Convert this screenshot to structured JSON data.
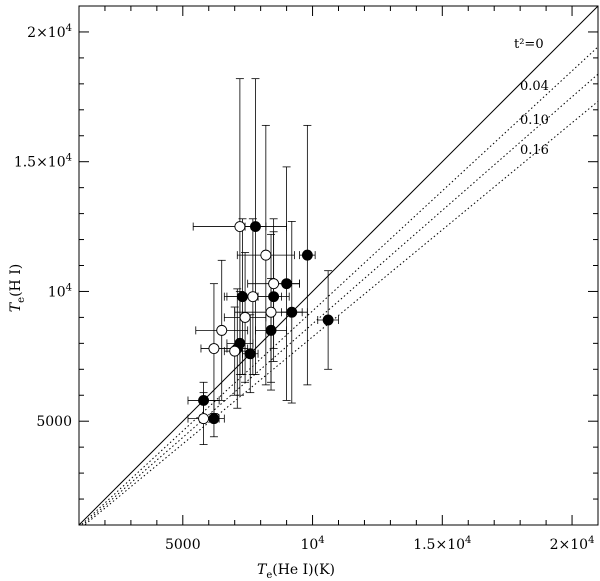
{
  "chart_data": {
    "type": "scatter",
    "title": "",
    "xlabel": {
      "main": "T",
      "sub": "e",
      "rest": "(He I)(K)"
    },
    "ylabel": {
      "main": "T",
      "sub": "e",
      "rest": "(H I)"
    },
    "xlim": [
      1000,
      21000
    ],
    "ylim": [
      1000,
      21000
    ],
    "x_ticks": [
      {
        "value": 5000,
        "mantissa": "5000",
        "exp": ""
      },
      {
        "value": 10000,
        "mantissa": "10",
        "exp": "4"
      },
      {
        "value": 15000,
        "mantissa": "1.5×10",
        "exp": "4"
      },
      {
        "value": 20000,
        "mantissa": "2×10",
        "exp": "4"
      }
    ],
    "y_ticks": [
      {
        "value": 5000,
        "mantissa": "5000",
        "exp": ""
      },
      {
        "value": 10000,
        "mantissa": "10",
        "exp": "4"
      },
      {
        "value": 15000,
        "mantissa": "1.5×10",
        "exp": "4"
      },
      {
        "value": 20000,
        "mantissa": "2×10",
        "exp": "4"
      }
    ],
    "grid": false,
    "reference_lines": [
      {
        "t2": 0,
        "label": "t²=0",
        "slope": 1.0,
        "style": "solid"
      },
      {
        "t2": 0.04,
        "label": "0.04",
        "slope": 0.925,
        "style": "dotted"
      },
      {
        "t2": 0.1,
        "label": "0.10",
        "slope": 0.875,
        "style": "dotted"
      },
      {
        "t2": 0.16,
        "label": "0.16",
        "slope": 0.825,
        "style": "dotted"
      }
    ],
    "series": [
      {
        "marker": "filled-circle",
        "points": [
          {
            "x": 5800,
            "y": 5800,
            "xerr": 600,
            "yerr": 700
          },
          {
            "x": 6200,
            "y": 5100,
            "xerr": 400,
            "yerr": 700
          },
          {
            "x": 7800,
            "y": 12500,
            "xerr": 400,
            "yerr": 5700
          },
          {
            "x": 7300,
            "y": 9800,
            "xerr": 600,
            "yerr": 3000
          },
          {
            "x": 7200,
            "y": 8000,
            "xerr": 500,
            "yerr": 2000
          },
          {
            "x": 7100,
            "y": 7800,
            "xerr": 400,
            "yerr": 2300
          },
          {
            "x": 7600,
            "y": 7600,
            "xerr": 300,
            "yerr": 1500
          },
          {
            "x": 8400,
            "y": 8500,
            "xerr": 600,
            "yerr": 2000
          },
          {
            "x": 8500,
            "y": 9800,
            "xerr": 600,
            "yerr": 2500
          },
          {
            "x": 9000,
            "y": 10300,
            "xerr": 500,
            "yerr": 4500
          },
          {
            "x": 9200,
            "y": 9200,
            "xerr": 400,
            "yerr": 3500
          },
          {
            "x": 9800,
            "y": 11400,
            "xerr": 300,
            "yerr": 5000
          },
          {
            "x": 10600,
            "y": 8900,
            "xerr": 400,
            "yerr": 1900
          }
        ]
      },
      {
        "marker": "open-circle",
        "points": [
          {
            "x": 5800,
            "y": 5100,
            "xerr": 600,
            "yerr": 1000
          },
          {
            "x": 6200,
            "y": 7800,
            "xerr": 500,
            "yerr": 2500
          },
          {
            "x": 6500,
            "y": 8500,
            "xerr": 1000,
            "yerr": 2700
          },
          {
            "x": 7000,
            "y": 7700,
            "xerr": 400,
            "yerr": 1700
          },
          {
            "x": 7200,
            "y": 12500,
            "xerr": 1800,
            "yerr": 5700
          },
          {
            "x": 7400,
            "y": 9000,
            "xerr": 800,
            "yerr": 2500
          },
          {
            "x": 7700,
            "y": 9800,
            "xerr": 1100,
            "yerr": 3000
          },
          {
            "x": 8200,
            "y": 11400,
            "xerr": 1100,
            "yerr": 5000
          },
          {
            "x": 8400,
            "y": 9200,
            "xerr": 1400,
            "yerr": 3000
          },
          {
            "x": 8500,
            "y": 10300,
            "xerr": 1000,
            "yerr": 2500
          }
        ]
      }
    ]
  }
}
